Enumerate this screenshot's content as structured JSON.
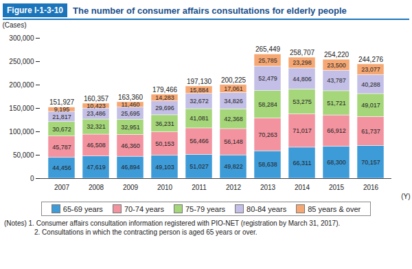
{
  "chart_data": {
    "type": "bar",
    "figure_label": "Figure I-1-3-10",
    "title": "The number of consumer affairs consultations for elderly people",
    "y_label": "(Cases)",
    "x_label": "(Y)",
    "stacked": true,
    "data_labels": true,
    "grid": false,
    "legend": "bottom",
    "categories": [
      "2007",
      "2008",
      "2009",
      "2010",
      "2011",
      "2012",
      "2013",
      "2014",
      "2015",
      "2016"
    ],
    "ylim": [
      0,
      300000
    ],
    "yticks": [
      0,
      {
        "value": 50000,
        "label": "50,000"
      },
      {
        "value": 100000,
        "label": "100,000"
      },
      {
        "value": 150000,
        "label": "150,000"
      },
      {
        "value": 200000,
        "label": "200,000"
      },
      {
        "value": 250000,
        "label": "250,000"
      },
      {
        "value": 300000,
        "label": "300,000"
      }
    ],
    "series": [
      {
        "name": "65-69 years",
        "color": "#3d9bd8",
        "values": [
          44456,
          47619,
          46894,
          49103,
          51027,
          49822,
          58638,
          66311,
          68300,
          70157
        ],
        "value_labels": [
          "44,456",
          "47,619",
          "46,894",
          "49,103",
          "51,027",
          "49,822",
          "58,638",
          "66,311",
          "68,300",
          "70,157"
        ]
      },
      {
        "name": "70-74 years",
        "color": "#f2939f",
        "values": [
          45787,
          46508,
          46360,
          50153,
          56466,
          56148,
          70263,
          71017,
          66912,
          61737
        ],
        "value_labels": [
          "45,787",
          "46,508",
          "46,360",
          "50,153",
          "56,466",
          "56,148",
          "70,263",
          "71,017",
          "66,912",
          "61,737"
        ]
      },
      {
        "name": "75-79 years",
        "color": "#a6d67a",
        "values": [
          30672,
          32321,
          32951,
          36231,
          41081,
          42368,
          58284,
          53275,
          51721,
          49017
        ],
        "value_labels": [
          "30,672",
          "32,321",
          "32,951",
          "36,231",
          "41,081",
          "42,368",
          "58,284",
          "53,275",
          "51,721",
          "49,017"
        ]
      },
      {
        "name": "80-84 years",
        "color": "#c3bfe6",
        "values": [
          21817,
          23486,
          25695,
          29696,
          32672,
          34826,
          52479,
          44806,
          43787,
          40288
        ],
        "value_labels": [
          "21,817",
          "23,486",
          "25,695",
          "29,696",
          "32,672",
          "34,826",
          "52,479",
          "44,806",
          "43,787",
          "40,288"
        ]
      },
      {
        "name": "85 years & over",
        "color": "#f6a874",
        "values": [
          9195,
          10423,
          11460,
          14283,
          15884,
          17061,
          25785,
          23298,
          23500,
          23077
        ],
        "value_labels": [
          "9,195",
          "10,423",
          "11,460",
          "14,283",
          "15,884",
          "17,061",
          "25,785",
          "23,298",
          "23,500",
          "23,077"
        ]
      }
    ],
    "totals": [
      151927,
      160357,
      163360,
      179466,
      197130,
      200225,
      265449,
      258707,
      254220,
      244276
    ],
    "total_labels": [
      "151,927",
      "160,357",
      "163,360",
      "179,466",
      "197,130",
      "200,225",
      "265,449",
      "258,707",
      "254,220",
      "244,276"
    ],
    "notes": [
      "(Notes) 1. Consumer affairs consultation information registered with PIO-NET (registration by March 31, 2017).",
      "2. Consultations in which the contracting person is aged 65 years or over."
    ]
  }
}
